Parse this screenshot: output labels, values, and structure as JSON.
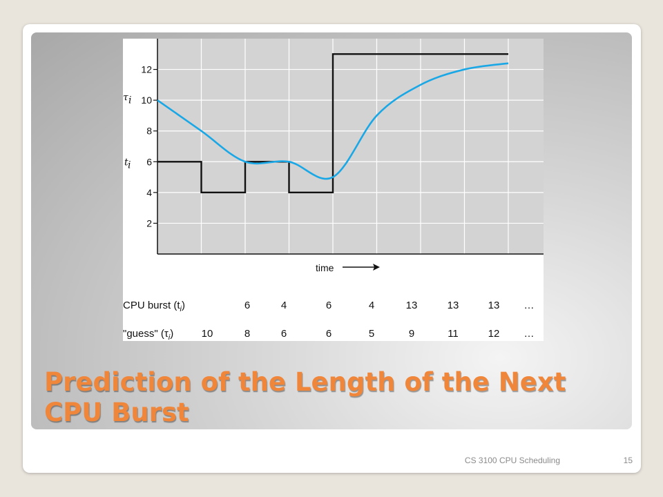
{
  "slide": {
    "title": "Prediction of the Length of the Next CPU Burst",
    "footer": "CS 3100 CPU Scheduling",
    "page_number": "15"
  },
  "colors": {
    "title": "#f0863a",
    "grid_background": "#d3d3d3",
    "burst_line": "#111111",
    "guess_curve": "#1aa7e6"
  },
  "chart_data": {
    "type": "line",
    "title": "",
    "xlabel": "time",
    "ylabel_symbols": [
      "τi",
      "ti"
    ],
    "yticks": [
      2,
      4,
      6,
      8,
      10,
      12
    ],
    "ylim": [
      0,
      14
    ],
    "grid": true,
    "series": [
      {
        "name": "CPU burst (ti)",
        "style": "step",
        "values": [
          6,
          4,
          6,
          4,
          13,
          13,
          13,
          13
        ]
      },
      {
        "name": "\"guess\" (τi)",
        "style": "smooth",
        "values": [
          10,
          8,
          6,
          6,
          5,
          9,
          11,
          12,
          12.4
        ]
      }
    ],
    "table": {
      "rows": [
        {
          "label_main": "CPU burst (t",
          "label_sub": "i",
          "label_end": ")",
          "values": [
            "6",
            "4",
            "6",
            "4",
            "13",
            "13",
            "13"
          ],
          "ellipsis": "…"
        },
        {
          "label_main": "\"guess\" (τ",
          "label_sub": "i",
          "label_end": ")",
          "values": [
            "10",
            "8",
            "6",
            "6",
            "5",
            "9",
            "11",
            "12"
          ],
          "ellipsis": "…"
        }
      ]
    }
  }
}
